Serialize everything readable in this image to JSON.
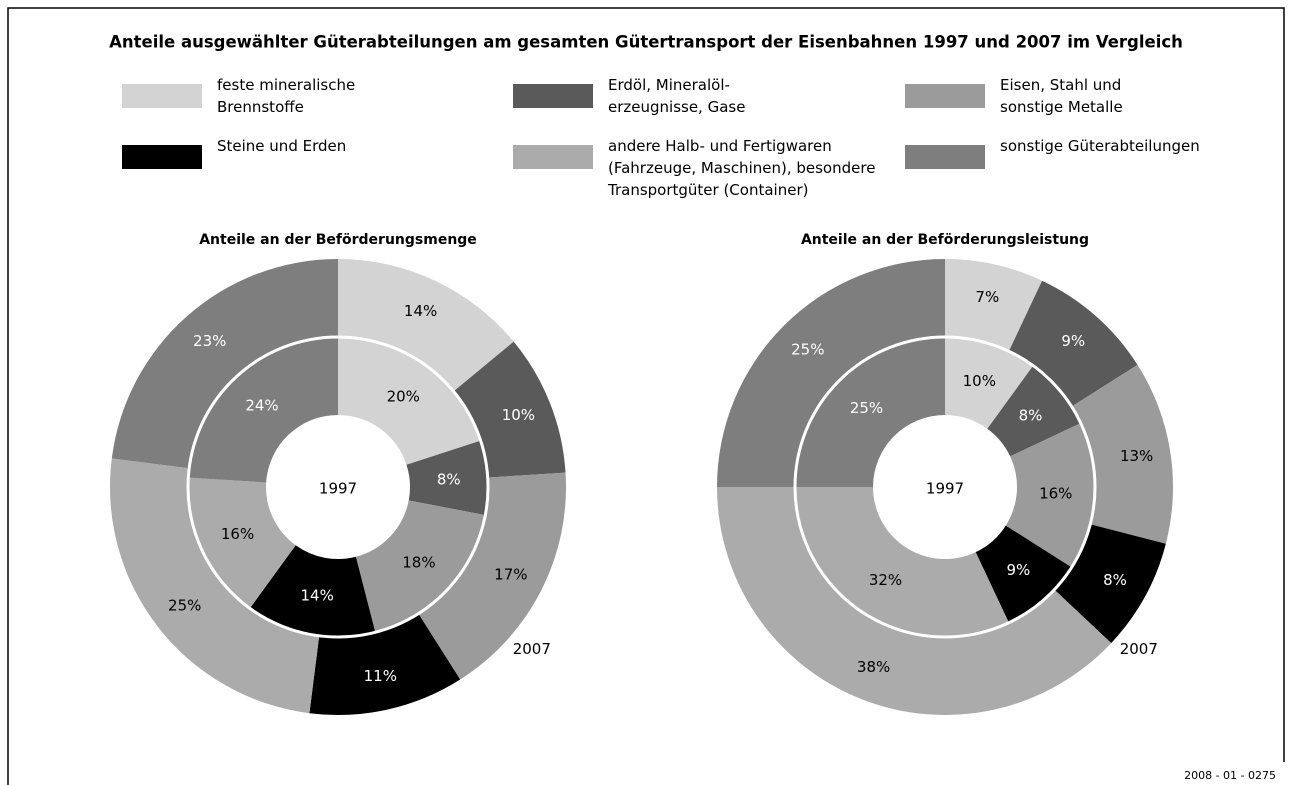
{
  "title": "Anteile ausgewählter Güterabteilungen am gesamten Gütertransport der Eisenbahnen 1997 und 2007 im Vergleich",
  "legend": {
    "categories": [
      "feste mineralische\nBrennstoffe",
      "Erdöl, Mineralöl-\nerzeugnisse, Gase",
      "Eisen, Stahl und\nsonstige Metalle",
      "Steine und Erden",
      "andere Halb- und Fertigwaren\n(Fahrzeuge, Maschinen), besondere\nTransportgüter  (Container)",
      "sonstige Güterabteilungen"
    ],
    "colors": [
      "#d3d3d3",
      "#5a5a5a",
      "#9b9b9b",
      "#000000",
      "#ababab",
      "#7e7e7e"
    ]
  },
  "chart_data": [
    {
      "type": "donut",
      "title": "Anteile an der Beförderungsmenge",
      "series": [
        {
          "name": "1997",
          "values": [
            20,
            8,
            18,
            14,
            16,
            24
          ],
          "value_labels": [
            "20%",
            "8%",
            "18%",
            "14%",
            "16%",
            "24%"
          ]
        },
        {
          "name": "2007",
          "values": [
            14,
            10,
            17,
            11,
            25,
            23
          ],
          "value_labels": [
            "14%",
            "10%",
            "17%",
            "11%",
            "25%",
            "23%"
          ]
        }
      ]
    },
    {
      "type": "donut",
      "title": "Anteile an der Beförderungsleistung",
      "series": [
        {
          "name": "1997",
          "values": [
            10,
            8,
            16,
            9,
            32,
            25
          ],
          "value_labels": [
            "10%",
            "8%",
            "16%",
            "9%",
            "32%",
            "25%"
          ]
        },
        {
          "name": "2007",
          "values": [
            7,
            9,
            13,
            8,
            38,
            25
          ],
          "value_labels": [
            "7%",
            "9%",
            "13%",
            "8%",
            "38%",
            "25%"
          ]
        }
      ]
    }
  ],
  "footer": "2008 - 01 - 0275"
}
